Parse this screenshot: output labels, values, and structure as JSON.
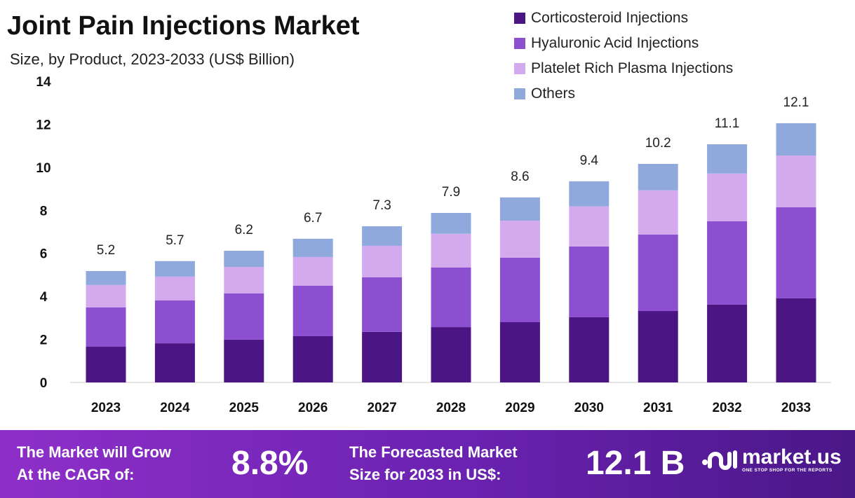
{
  "chart_data": {
    "type": "stacked-bar",
    "title": "Joint Pain Injections Market",
    "subtitle": "Size, by Product, 2023-2033 (US$ Billion)",
    "categories": [
      "2023",
      "2024",
      "2025",
      "2026",
      "2027",
      "2028",
      "2029",
      "2030",
      "2031",
      "2032",
      "2033"
    ],
    "series": [
      {
        "name": "Corticosteroid Injections",
        "color": "#4b1583",
        "values": [
          1.66,
          1.82,
          1.99,
          2.15,
          2.35,
          2.57,
          2.8,
          3.03,
          3.32,
          3.62,
          3.91
        ]
      },
      {
        "name": "Hyaluronic Acid Injections",
        "color": "#8b4fd0",
        "values": [
          1.83,
          1.99,
          2.15,
          2.35,
          2.54,
          2.77,
          3.0,
          3.29,
          3.55,
          3.87,
          4.23
        ]
      },
      {
        "name": "Platelet Rich Plasma Injections",
        "color": "#d4aaee",
        "values": [
          1.04,
          1.11,
          1.23,
          1.33,
          1.46,
          1.57,
          1.72,
          1.86,
          2.06,
          2.22,
          2.41
        ]
      },
      {
        "name": "Others",
        "color": "#8fa9dd",
        "values": [
          0.65,
          0.72,
          0.75,
          0.85,
          0.91,
          0.97,
          1.08,
          1.17,
          1.23,
          1.36,
          1.5
        ]
      }
    ],
    "totals": [
      "5.2",
      "5.7",
      "6.2",
      "6.7",
      "7.3",
      "7.9",
      "8.6",
      "9.4",
      "10.2",
      "11.1",
      "12.1"
    ],
    "yticks": [
      0,
      2,
      4,
      6,
      8,
      10,
      12,
      14
    ],
    "ylim": [
      0,
      14
    ],
    "grid": false,
    "legend": "top-right"
  },
  "footer": {
    "cagr_label_1": "The Market will Grow",
    "cagr_label_2": "At the CAGR of:",
    "cagr_value": "8.8%",
    "forecast_label_1": "The Forecasted Market",
    "forecast_label_2": "Size for 2033 in US$:",
    "forecast_value": "12.1 B",
    "brand": "market.us",
    "tagline": "ONE STOP SHOP FOR THE REPORTS"
  }
}
